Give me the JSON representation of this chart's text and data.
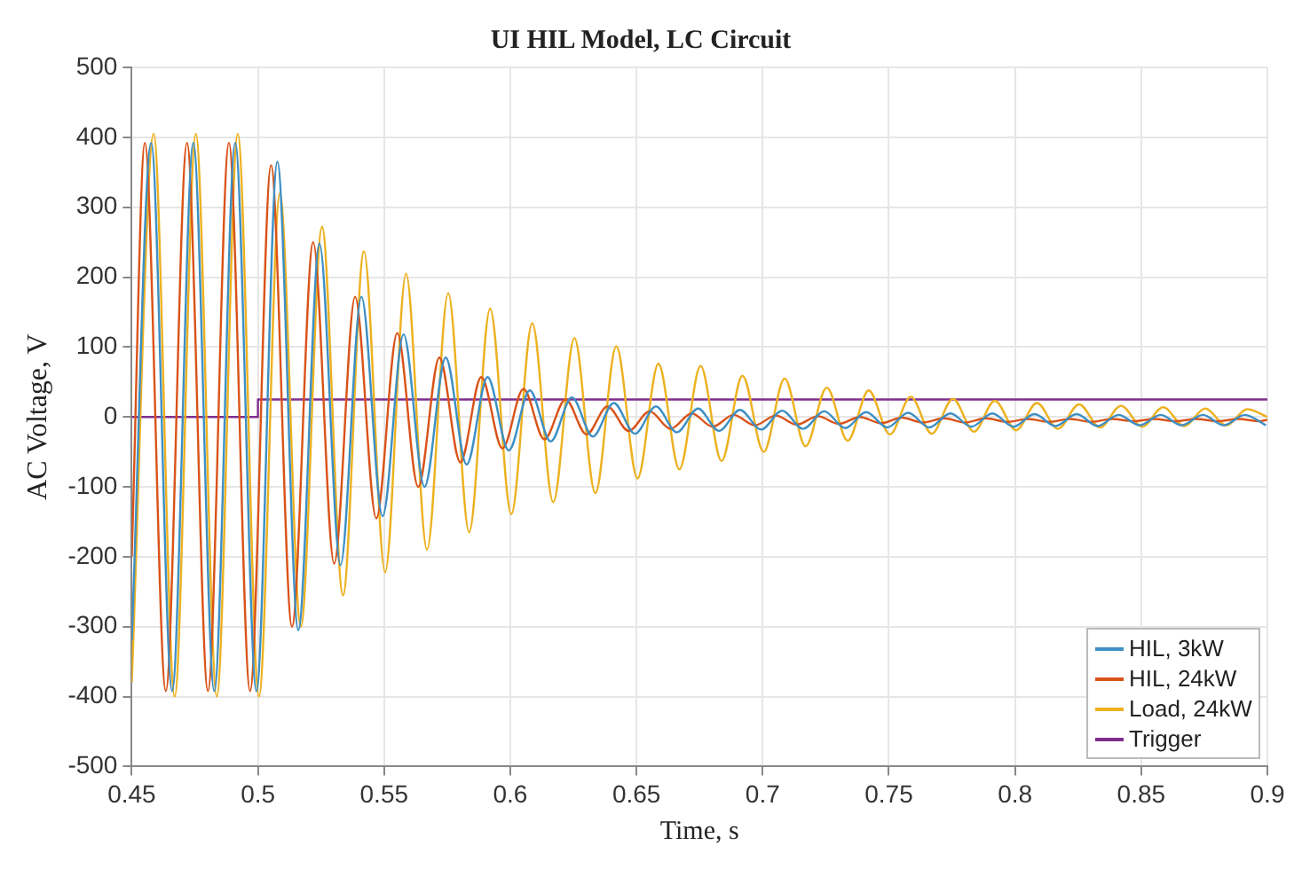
{
  "chart_data": {
    "type": "line",
    "title": "UI HIL Model, LC Circuit",
    "xlabel": "Time, s",
    "ylabel": "AC Voltage, V",
    "xlim": [
      0.45,
      0.9
    ],
    "xticks": [
      0.45,
      0.5,
      0.55,
      0.6,
      0.65,
      0.7,
      0.75,
      0.8,
      0.85,
      0.9
    ],
    "ylim": [
      -500,
      500
    ],
    "yticks": [
      -500,
      -400,
      -300,
      -200,
      -100,
      0,
      100,
      200,
      300,
      400,
      500
    ],
    "grid": true,
    "legend": "bottom right",
    "marker": "none",
    "line_style": "solid",
    "series": [
      {
        "name": "HIL, 3kW",
        "color": "#3d8fc4",
        "x": [
          0.45,
          0.4577,
          0.466,
          0.4744,
          0.4827,
          0.491,
          0.4994,
          0.5077,
          0.516,
          0.5244,
          0.5327,
          0.541,
          0.5494,
          0.5577,
          0.566,
          0.5744,
          0.5827,
          0.591,
          0.5994,
          0.6077,
          0.616,
          0.6244,
          0.6327,
          0.641,
          0.6494,
          0.6577,
          0.666,
          0.6744,
          0.6827,
          0.691,
          0.6994,
          0.7077,
          0.716,
          0.7244,
          0.7327,
          0.741,
          0.7494,
          0.7577,
          0.766,
          0.7744,
          0.7827,
          0.791,
          0.7994,
          0.8077,
          0.816,
          0.8244,
          0.8327,
          0.841,
          0.8494,
          0.8577,
          0.866,
          0.8744,
          0.8827,
          0.891,
          0.8994
        ],
        "values": [
          -320,
          392,
          -392,
          392,
          -392,
          392,
          -392,
          365,
          -305,
          248,
          -212,
          172,
          -142,
          118,
          -100,
          85,
          -68,
          57,
          -48,
          38,
          -35,
          28,
          -28,
          20,
          -24,
          15,
          -22,
          12,
          -20,
          10,
          -18,
          9,
          -17,
          8,
          -16,
          7,
          -15,
          6,
          -15,
          5,
          -14,
          5,
          -14,
          4,
          -13,
          4,
          -13,
          3,
          -12,
          3,
          -12,
          3,
          -12,
          3,
          -12
        ]
      },
      {
        "name": "HIL, 24kW",
        "color": "#d95319",
        "x": [
          0.45,
          0.4552,
          0.4635,
          0.4719,
          0.4802,
          0.4885,
          0.4969,
          0.5052,
          0.5135,
          0.5219,
          0.5302,
          0.5385,
          0.5469,
          0.5552,
          0.5635,
          0.5719,
          0.5802,
          0.5885,
          0.5969,
          0.6052,
          0.6135,
          0.6219,
          0.6302,
          0.6385,
          0.6469,
          0.6552,
          0.6635,
          0.6719,
          0.6802,
          0.6885,
          0.6969,
          0.7052,
          0.7135,
          0.7219,
          0.7302,
          0.7385,
          0.7469,
          0.7552,
          0.7635,
          0.7719,
          0.7802,
          0.7885,
          0.7969,
          0.8052,
          0.8135,
          0.8219,
          0.8302,
          0.8385,
          0.8469,
          0.8552,
          0.8635,
          0.8719,
          0.8802,
          0.8885,
          0.8969,
          0.9
        ],
        "values": [
          -200,
          392,
          -392,
          392,
          -392,
          392,
          -392,
          360,
          -300,
          250,
          -210,
          172,
          -145,
          120,
          -100,
          85,
          -65,
          57,
          -45,
          40,
          -32,
          25,
          -25,
          15,
          -20,
          8,
          -17,
          5,
          -14,
          3,
          -12,
          2,
          -11,
          1,
          -10,
          0,
          -9,
          -1,
          -8,
          -2,
          -8,
          -2,
          -7,
          -3,
          -7,
          -3,
          -7,
          -3,
          -6,
          -3,
          -6,
          -3,
          -6,
          -3,
          -6,
          -4
        ]
      },
      {
        "name": "Load, 24kW",
        "color": "#edb120",
        "x": [
          0.45,
          0.4587,
          0.467,
          0.4754,
          0.4837,
          0.492,
          0.5004,
          0.5087,
          0.517,
          0.5254,
          0.5337,
          0.542,
          0.5504,
          0.5587,
          0.567,
          0.5754,
          0.5837,
          0.592,
          0.6004,
          0.6087,
          0.617,
          0.6254,
          0.6337,
          0.642,
          0.6504,
          0.6587,
          0.667,
          0.6754,
          0.6837,
          0.692,
          0.7004,
          0.7087,
          0.717,
          0.7254,
          0.7337,
          0.742,
          0.7504,
          0.7587,
          0.767,
          0.7754,
          0.7837,
          0.792,
          0.8004,
          0.8087,
          0.817,
          0.8254,
          0.8337,
          0.842,
          0.8504,
          0.8587,
          0.867,
          0.8754,
          0.8837,
          0.892,
          0.9
        ],
        "values": [
          -380,
          405,
          -400,
          405,
          -400,
          405,
          -400,
          320,
          -300,
          272,
          -255,
          237,
          -222,
          205,
          -190,
          177,
          -165,
          155,
          -139,
          134,
          -122,
          113,
          -109,
          101,
          -88,
          76,
          -75,
          73,
          -63,
          59,
          -50,
          55,
          -42,
          42,
          -34,
          38,
          -25,
          29,
          -24,
          26,
          -21,
          23,
          -19,
          20,
          -17,
          18,
          -15,
          16,
          -14,
          14,
          -13,
          12,
          -12,
          11,
          0
        ]
      },
      {
        "name": "Trigger",
        "color": "#7e2f8e",
        "x": [
          0.45,
          0.5,
          0.5,
          0.9
        ],
        "values": [
          0,
          0,
          25,
          25
        ]
      }
    ]
  }
}
